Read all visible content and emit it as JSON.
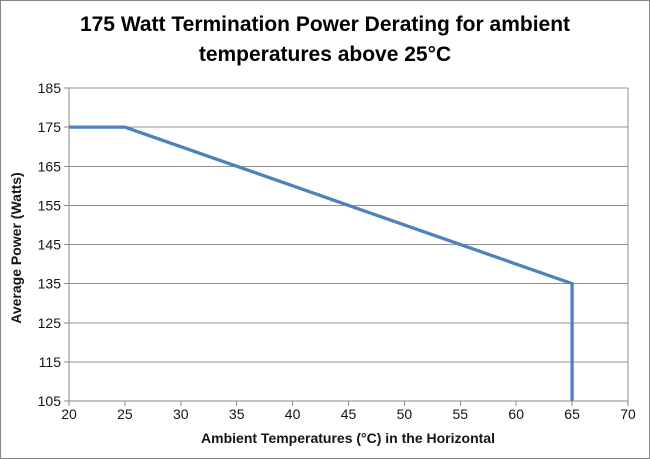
{
  "chart_data": {
    "type": "line",
    "title": "175 Watt Termination Power Derating for ambient temperatures above 25°C",
    "title_lines": [
      "175 Watt Termination Power Derating for ambient",
      "temperatures above 25°C"
    ],
    "xlabel": "Ambient Temperatures (°C) in the Horizontal",
    "ylabel": "Average Power (Watts)",
    "xlim": [
      20,
      70
    ],
    "ylim": [
      105,
      185
    ],
    "x_ticks": [
      20,
      25,
      30,
      35,
      40,
      45,
      50,
      55,
      60,
      65,
      70
    ],
    "y_ticks": [
      105,
      115,
      125,
      135,
      145,
      155,
      165,
      175,
      185
    ],
    "grid": "horizontal-only",
    "legend": "none",
    "plot_right_border": true,
    "series": [
      {
        "points": [
          [
            20,
            175
          ],
          [
            25,
            175
          ],
          [
            65,
            135
          ],
          [
            65,
            105
          ]
        ],
        "color": "#4F81BD"
      }
    ],
    "colors": {
      "line": "#4F81BD",
      "grid": "#919191",
      "axis": "#8A8A8A",
      "text": "#141414",
      "background": "#FFFFFF",
      "border": "#868686"
    }
  }
}
